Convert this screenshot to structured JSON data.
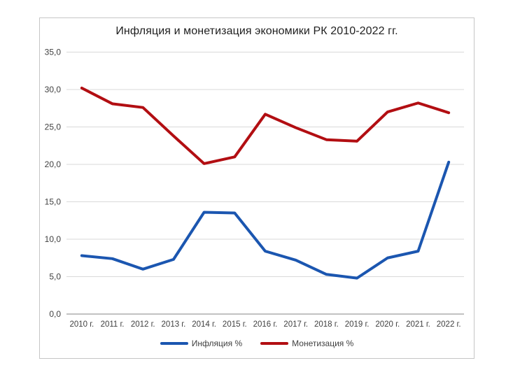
{
  "chart_data": {
    "type": "line",
    "title": "Инфляция и монетизация экономики РК 2010-2022 гг.",
    "categories": [
      "2010 г.",
      "2011 г.",
      "2012 г.",
      "2013 г.",
      "2014 г.",
      "2015 г.",
      "2016 г.",
      "2017 г.",
      "2018 г.",
      "2019 г.",
      "2020 г.",
      "2021 г.",
      "2022 г."
    ],
    "series": [
      {
        "name": "Инфляция %",
        "color": "#1b56b0",
        "values": [
          7.8,
          7.4,
          6.0,
          7.3,
          13.6,
          13.5,
          8.4,
          7.2,
          5.3,
          4.8,
          7.5,
          8.4,
          20.3
        ]
      },
      {
        "name": "Монетизация %",
        "color": "#b20e12",
        "values": [
          30.2,
          28.1,
          27.6,
          23.8,
          20.1,
          21.0,
          26.7,
          24.9,
          23.3,
          23.1,
          27.0,
          28.2,
          26.9
        ]
      }
    ],
    "ylim": [
      0,
      35
    ],
    "ytick_step": 5,
    "ytick_labels": [
      "0,0",
      "5,0",
      "10,0",
      "15,0",
      "20,0",
      "25,0",
      "30,0",
      "35,0"
    ],
    "grid": true,
    "legend_position": "bottom",
    "colors": {
      "gridline": "#d9d9d9",
      "axis_line": "#9e9e9e",
      "tick_label": "#3f3f3f",
      "title": "#1f1f1f",
      "frame_border": "#c6c6c6",
      "background": "#ffffff"
    }
  }
}
